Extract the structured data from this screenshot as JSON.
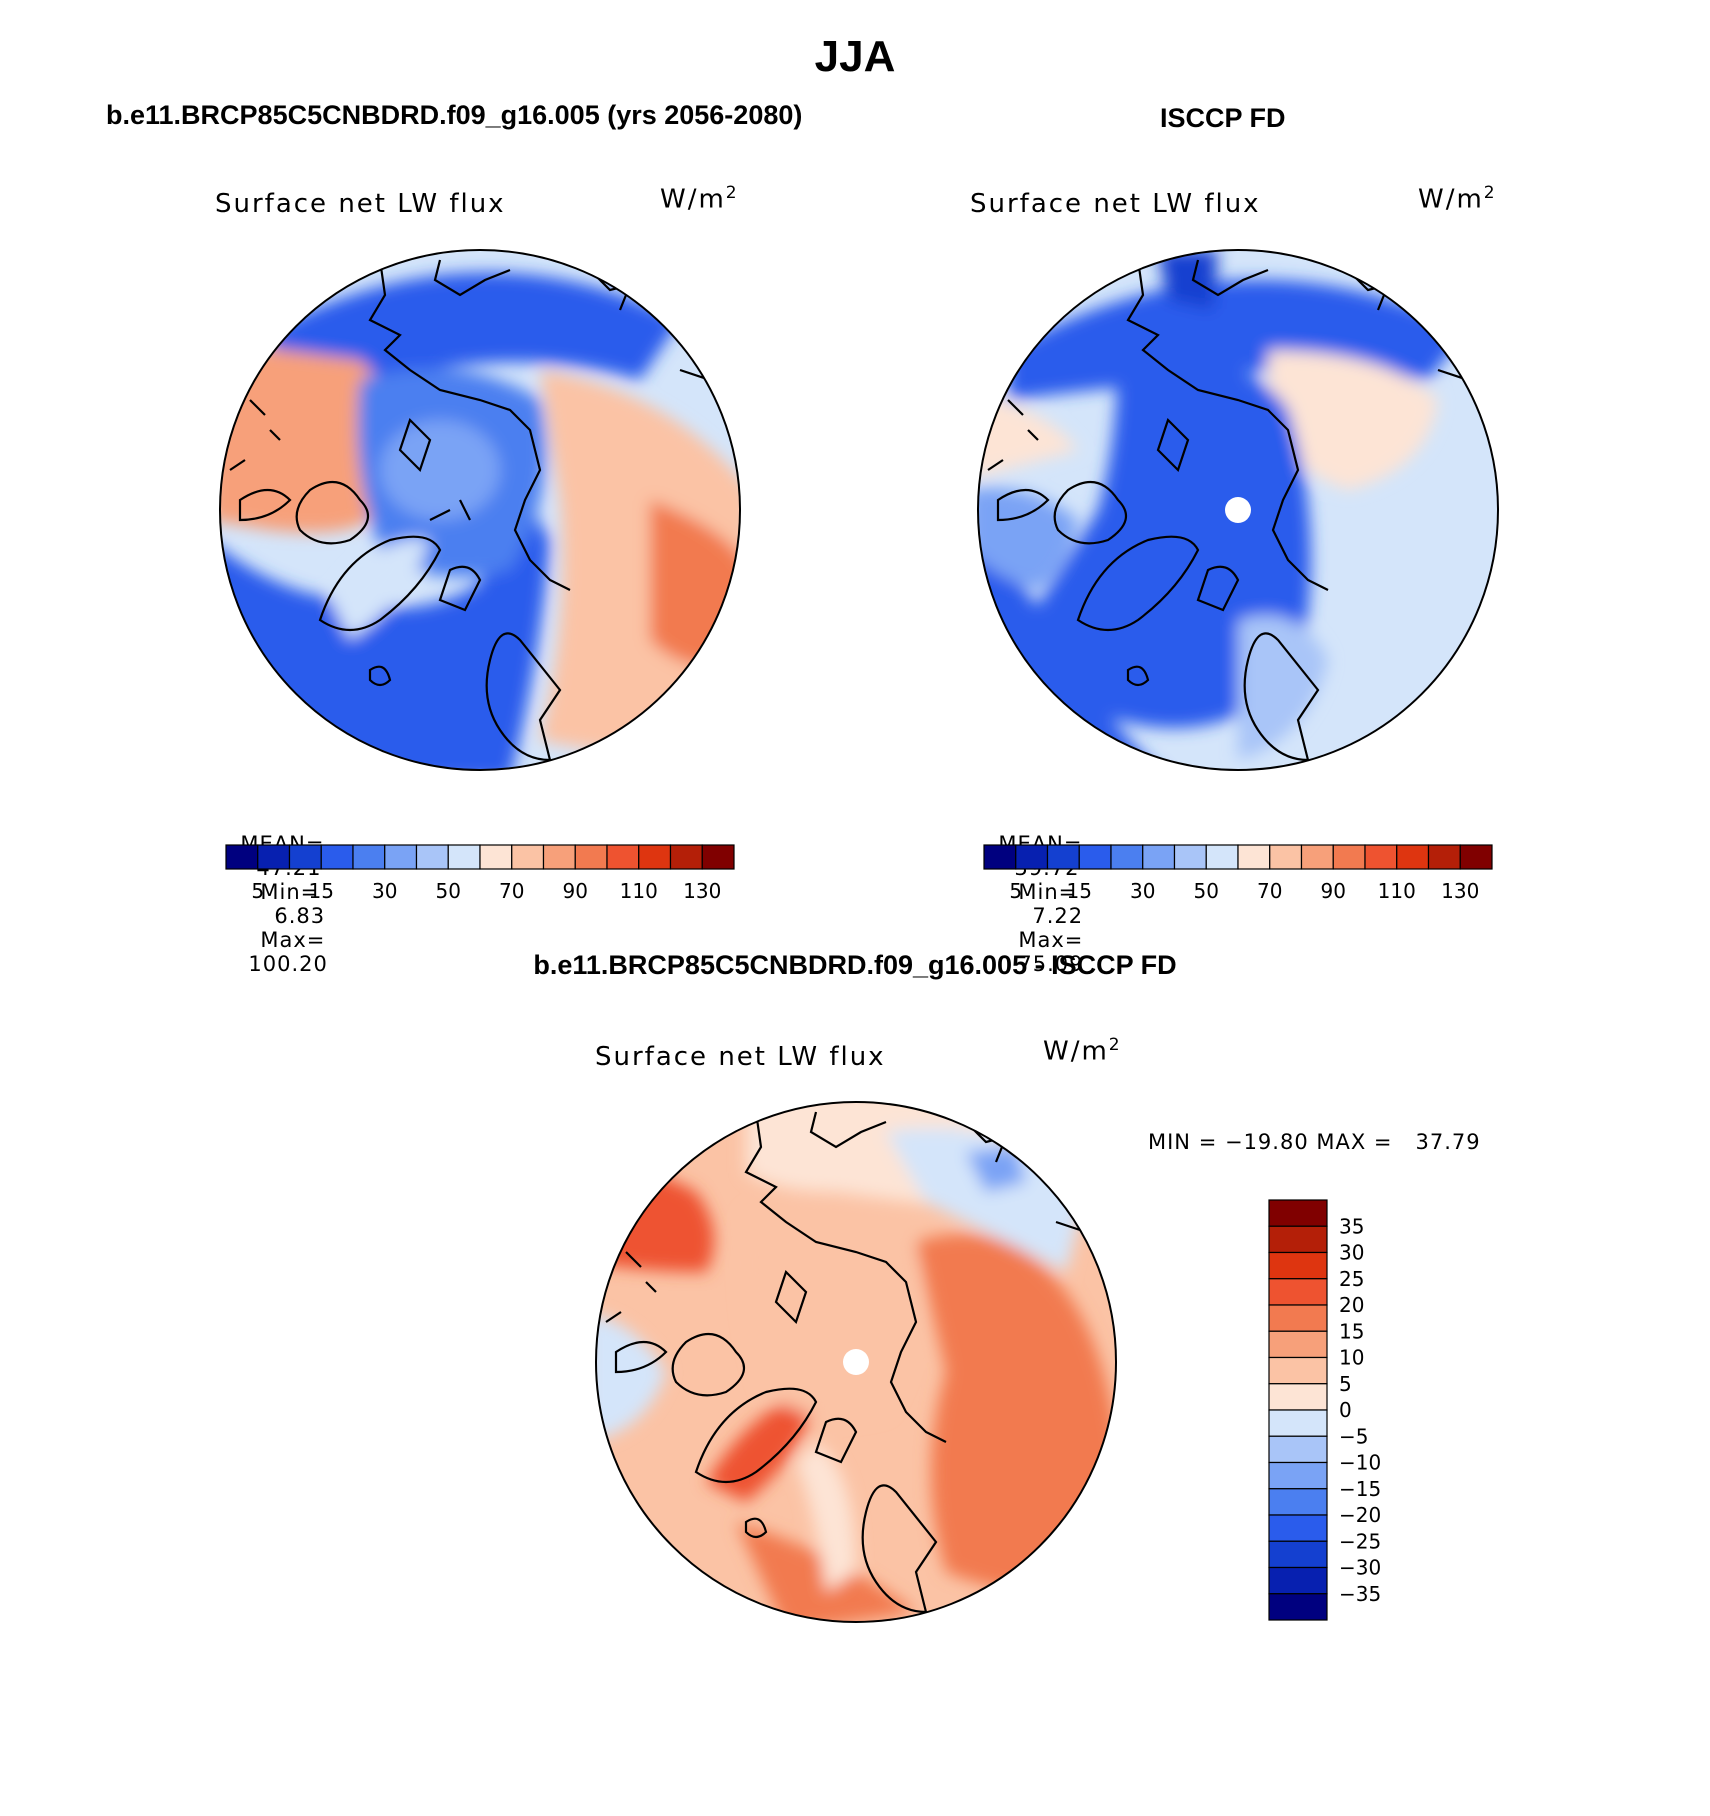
{
  "page": {
    "season": "JJA",
    "left_case": "b.e11.BRCP85C5CNBDRD.f09_g16.005 (yrs 2056-2080)",
    "right_case": "ISCCP FD",
    "diff_case": "b.e11.BRCP85C5CNBDRD.f09_g16.005 - ISCCP FD"
  },
  "panels": {
    "left": {
      "variable": "Surface net LW flux",
      "units": "W/m",
      "units_sup": "2",
      "mean_label": "MEAN=",
      "mean": "47.21",
      "min_label": "Min=",
      "min": "6.83",
      "max_label": "Max=",
      "max": "100.20"
    },
    "right": {
      "variable": "Surface net LW flux",
      "units": "W/m",
      "units_sup": "2",
      "mean_label": "MEAN=",
      "mean": "39.72",
      "min_label": "Min=",
      "min": "7.22",
      "max_label": "Max=",
      "max": "75.09"
    },
    "diff": {
      "variable": "Surface net LW flux",
      "units": "W/m",
      "units_sup": "2",
      "minmax": "MIN = −19.80 MAX =   37.79"
    }
  },
  "abs_colorbar": {
    "colors": [
      "#00007f",
      "#0720b0",
      "#1440d0",
      "#2a5cec",
      "#4b7ff0",
      "#7aa3f5",
      "#a9c5f8",
      "#d4e5fa",
      "#fde4d5",
      "#fbc3a5",
      "#f7a07a",
      "#f27a50",
      "#ee5330",
      "#de3510",
      "#b41f08",
      "#800000"
    ],
    "labels": [
      "5",
      "15",
      "30",
      "50",
      "70",
      "90",
      "110",
      "130"
    ]
  },
  "diff_colorbar": {
    "colors_top_to_bottom": [
      "#800000",
      "#b41f08",
      "#de3510",
      "#ee5330",
      "#f27a50",
      "#f7a07a",
      "#fbc3a5",
      "#fde4d5",
      "#d4e5fa",
      "#a9c5f8",
      "#7aa3f5",
      "#4b7ff0",
      "#2a5cec",
      "#1440d0",
      "#0720b0",
      "#00007f"
    ],
    "labels": [
      "35",
      "30",
      "25",
      "20",
      "15",
      "10",
      "5",
      "0",
      "−5",
      "−10",
      "−15",
      "−20",
      "−25",
      "−30",
      "−35"
    ]
  }
}
